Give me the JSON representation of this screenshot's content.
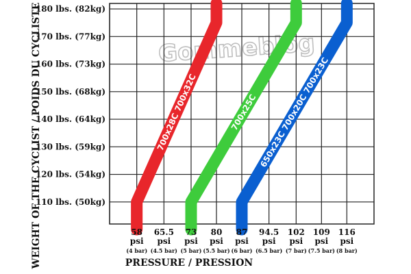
{
  "chart_data": {
    "type": "line",
    "ylabel": "WEIGHT OF THE CYCLIST / POIDS DU CYCLISTE",
    "xlabel": "PRESSURE / PRESSION",
    "watermark": "Gommeblog",
    "x_ticks": [
      {
        "psi": "58",
        "unit": "psi",
        "bar": "(4 bar)"
      },
      {
        "psi": "65.5",
        "unit": "psi",
        "bar": "(4.5 bar)"
      },
      {
        "psi": "73",
        "unit": "psi",
        "bar": "(5 bar)"
      },
      {
        "psi": "80",
        "unit": "psi",
        "bar": "(5.5 bar)"
      },
      {
        "psi": "87",
        "unit": "psi",
        "bar": "(6 bar)"
      },
      {
        "psi": "94.5",
        "unit": "psi",
        "bar": "(6.5 bar)"
      },
      {
        "psi": "102",
        "unit": "psi",
        "bar": "(7 bar)"
      },
      {
        "psi": "109",
        "unit": "psi",
        "bar": "(7.5 bar)"
      },
      {
        "psi": "116",
        "unit": "psi",
        "bar": "(8 bar)"
      }
    ],
    "y_ticks": [
      {
        "lbs": 110,
        "label": "110 lbs. (50kg)"
      },
      {
        "lbs": 120,
        "label": "120 lbs. (54kg)"
      },
      {
        "lbs": 130,
        "label": "130 lbs. (59kg)"
      },
      {
        "lbs": 140,
        "label": "140 lbs. (64kg)"
      },
      {
        "lbs": 150,
        "label": "150 lbs. (68kg)"
      },
      {
        "lbs": 160,
        "label": "160 lbs. (73kg)"
      },
      {
        "lbs": 170,
        "label": "170 lbs. (77kg)"
      },
      {
        "lbs": 180,
        "label": "180 lbs. (82kg)"
      }
    ],
    "xlim_psi": [
      50.5,
      123.5
    ],
    "ylim_lbs": [
      102,
      182
    ],
    "grid": true,
    "series": [
      {
        "name": "700x28C  700x32C",
        "color": "#e8262b",
        "points": [
          [
            58,
            100
          ],
          [
            58,
            110
          ],
          [
            80,
            175
          ],
          [
            80,
            182
          ]
        ]
      },
      {
        "name": "700x25C",
        "color": "#3ecc3c",
        "points": [
          [
            73,
            100
          ],
          [
            73,
            110
          ],
          [
            102,
            175
          ],
          [
            102,
            182
          ]
        ]
      },
      {
        "name": "650x23C  700x20C  700x23C",
        "color": "#0a5fd0",
        "points": [
          [
            87,
            100
          ],
          [
            87,
            110
          ],
          [
            116,
            175
          ],
          [
            116,
            182
          ]
        ]
      }
    ]
  }
}
